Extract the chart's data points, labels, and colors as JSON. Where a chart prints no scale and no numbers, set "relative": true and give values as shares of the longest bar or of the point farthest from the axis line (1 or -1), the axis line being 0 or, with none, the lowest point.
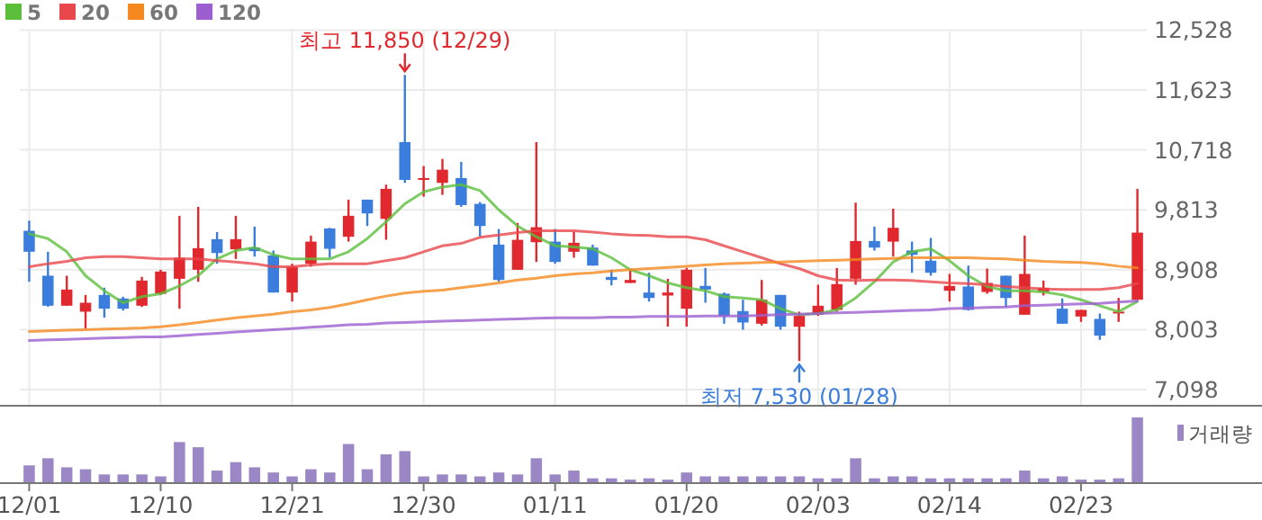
{
  "chart_data": [
    {
      "type": "candlestick",
      "ohlc": [
        [
          9496,
          9650,
          8727,
          9180
        ],
        [
          8818,
          9180,
          8350,
          8365
        ],
        [
          8365,
          8818,
          8365,
          8609
        ],
        [
          8275,
          8528,
          8021,
          8410
        ],
        [
          8528,
          8637,
          8184,
          8320
        ],
        [
          8474,
          8501,
          8293,
          8320
        ],
        [
          8365,
          8800,
          8347,
          8745
        ],
        [
          8546,
          8908,
          8528,
          8881
        ],
        [
          8772,
          9723,
          8320,
          9089
        ],
        [
          8908,
          9858,
          8727,
          9234
        ],
        [
          9370,
          9478,
          8999,
          9161
        ],
        [
          9216,
          9723,
          9071,
          9370
        ],
        [
          9243,
          9560,
          9107,
          9189
        ],
        [
          9125,
          9198,
          8564,
          8564
        ],
        [
          8564,
          8999,
          8428,
          8953
        ],
        [
          8999,
          9424,
          8953,
          9333
        ],
        [
          9532,
          9541,
          9089,
          9225
        ],
        [
          9406,
          9967,
          9333,
          9723
        ],
        [
          9967,
          9967,
          9569,
          9759
        ],
        [
          9677,
          10193,
          9360,
          10130
        ],
        [
          10836,
          11850,
          10220,
          10265
        ],
        [
          10265,
          10474,
          10012,
          10293
        ],
        [
          10220,
          10582,
          10039,
          10419
        ],
        [
          10293,
          10537,
          9858,
          9885
        ],
        [
          9903,
          9931,
          9406,
          9569
        ],
        [
          9288,
          9523,
          8727,
          8754
        ],
        [
          8908,
          9614,
          8908,
          9360
        ],
        [
          9324,
          10836,
          9026,
          9550
        ],
        [
          9333,
          9523,
          8999,
          9026
        ],
        [
          9180,
          9478,
          9089,
          9315
        ],
        [
          9243,
          9288,
          8971,
          8971
        ],
        [
          8800,
          8908,
          8673,
          8754
        ],
        [
          8709,
          8908,
          8709,
          8754
        ],
        [
          8564,
          8863,
          8428,
          8482
        ],
        [
          8519,
          8772,
          8049,
          8564
        ],
        [
          8320,
          8935,
          8049,
          8908
        ],
        [
          8664,
          8935,
          8410,
          8609
        ],
        [
          8546,
          8564,
          8093,
          8211
        ],
        [
          8284,
          8455,
          8003,
          8112
        ],
        [
          8093,
          8754,
          8066,
          8455
        ],
        [
          8528,
          8528,
          8003,
          8048
        ],
        [
          8048,
          8275,
          7530,
          8211
        ],
        [
          8230,
          8682,
          8211,
          8365
        ],
        [
          8302,
          8935,
          8275,
          8691
        ],
        [
          8772,
          9922,
          8682,
          9342
        ],
        [
          9342,
          9560,
          9198,
          9243
        ],
        [
          9333,
          9831,
          9107,
          9541
        ],
        [
          9198,
          9333,
          8863,
          9134
        ],
        [
          9044,
          9388,
          8818,
          8863
        ],
        [
          8591,
          8845,
          8428,
          8664
        ],
        [
          8655,
          8971,
          8293,
          8302
        ],
        [
          8573,
          8926,
          8546,
          8709
        ],
        [
          8818,
          8818,
          8347,
          8482
        ],
        [
          8229,
          9424,
          8229,
          8845
        ],
        [
          8573,
          8745,
          8519,
          8637
        ],
        [
          8320,
          8474,
          8093,
          8093
        ],
        [
          8202,
          8302,
          8121,
          8302
        ],
        [
          8166,
          8247,
          7849,
          7913
        ],
        [
          8256,
          8483,
          8121,
          8275
        ],
        [
          8455,
          10130,
          8455,
          9469
        ]
      ],
      "colors": [
        "#3b7ddd",
        "#3b7ddd",
        "#e0282e",
        "#e0282e",
        "#3b7ddd",
        "#3b7ddd",
        "#e0282e",
        "#e0282e",
        "#e0282e",
        "#e0282e",
        "#3b7ddd",
        "#e0282e",
        "#3b7ddd",
        "#3b7ddd",
        "#e0282e",
        "#e0282e",
        "#3b7ddd",
        "#e0282e",
        "#3b7ddd",
        "#e0282e",
        "#3b7ddd",
        "#e0282e",
        "#e0282e",
        "#3b7ddd",
        "#3b7ddd",
        "#3b7ddd",
        "#e0282e",
        "#e0282e",
        "#3b7ddd",
        "#e0282e",
        "#3b7ddd",
        "#3b7ddd",
        "#e0282e",
        "#3b7ddd",
        "#e0282e",
        "#e0282e",
        "#3b7ddd",
        "#3b7ddd",
        "#3b7ddd",
        "#e0282e",
        "#3b7ddd",
        "#e0282e",
        "#e0282e",
        "#e0282e",
        "#e0282e",
        "#3b7ddd",
        "#e0282e",
        "#3b7ddd",
        "#3b7ddd",
        "#e0282e",
        "#3b7ddd",
        "#e0282e",
        "#3b7ddd",
        "#e0282e",
        "#e0282e",
        "#3b7ddd",
        "#e0282e",
        "#3b7ddd",
        "#e0282e",
        "#e0282e"
      ],
      "series": [
        {
          "type": "line",
          "name": "5",
          "color": "#5cbf3c",
          "values": [
            9451,
            9379,
            9180,
            8818,
            8591,
            8410,
            8501,
            8546,
            8664,
            8818,
            9071,
            9198,
            9243,
            9134,
            9071,
            9071,
            9071,
            9180,
            9379,
            9632,
            9904,
            10085,
            10157,
            10193,
            10103,
            9813,
            9569,
            9406,
            9270,
            9252,
            9225,
            9089,
            8908,
            8818,
            8709,
            8637,
            8591,
            8501,
            8482,
            8455,
            8320,
            8229,
            8247,
            8302,
            8482,
            8727,
            9026,
            9180,
            9225,
            9044,
            8818,
            8655,
            8591,
            8591,
            8573,
            8528,
            8455,
            8365,
            8275,
            8428
          ]
        },
        {
          "type": "line",
          "name": "20",
          "color": "#e8474c",
          "values": [
            8953,
            8999,
            9035,
            9089,
            9107,
            9107,
            9089,
            9071,
            9071,
            9071,
            9044,
            9026,
            8999,
            8953,
            8953,
            8980,
            8999,
            8999,
            8999,
            9044,
            9089,
            9180,
            9270,
            9306,
            9397,
            9433,
            9469,
            9496,
            9496,
            9496,
            9478,
            9451,
            9433,
            9424,
            9406,
            9406,
            9361,
            9270,
            9180,
            9089,
            8999,
            8926,
            8818,
            8754,
            8745,
            8754,
            8754,
            8745,
            8727,
            8709,
            8700,
            8682,
            8655,
            8637,
            8618,
            8609,
            8609,
            8609,
            8637,
            8700
          ]
        },
        {
          "type": "line",
          "name": "60",
          "color": "#f5891f",
          "values": [
            7976,
            7985,
            7994,
            8003,
            8012,
            8021,
            8030,
            8048,
            8076,
            8112,
            8148,
            8184,
            8211,
            8238,
            8275,
            8302,
            8338,
            8392,
            8455,
            8510,
            8555,
            8582,
            8600,
            8637,
            8673,
            8709,
            8754,
            8781,
            8818,
            8845,
            8863,
            8890,
            8908,
            8926,
            8944,
            8962,
            8980,
            8999,
            9008,
            9017,
            9026,
            9035,
            9044,
            9053,
            9062,
            9071,
            9080,
            9089,
            9089,
            9089,
            9089,
            9080,
            9071,
            9053,
            9035,
            9026,
            9017,
            8999,
            8962,
            8935
          ]
        },
        {
          "type": "line",
          "name": "120",
          "color": "#9c5fcf",
          "values": [
            7840,
            7849,
            7858,
            7867,
            7876,
            7885,
            7894,
            7894,
            7912,
            7931,
            7949,
            7967,
            7985,
            8003,
            8021,
            8039,
            8057,
            8076,
            8085,
            8103,
            8112,
            8121,
            8130,
            8139,
            8148,
            8157,
            8166,
            8175,
            8184,
            8184,
            8184,
            8193,
            8193,
            8202,
            8202,
            8202,
            8211,
            8211,
            8211,
            8220,
            8229,
            8238,
            8247,
            8256,
            8265,
            8275,
            8284,
            8293,
            8302,
            8320,
            8329,
            8338,
            8347,
            8365,
            8374,
            8383,
            8392,
            8401,
            8419,
            8437
          ]
        }
      ],
      "ylim": [
        6868,
        12528
      ],
      "yticks": [
        {
          "value": 12528,
          "label": "12,528"
        },
        {
          "value": 11623,
          "label": "11,623"
        },
        {
          "value": 10718,
          "label": "10,718"
        },
        {
          "value": 9813,
          "label": "9,813"
        },
        {
          "value": 8908,
          "label": "8,908"
        },
        {
          "value": 8003,
          "label": "8,003"
        },
        {
          "value": 7098,
          "label": "7,098"
        }
      ],
      "grid": true,
      "legend": "top left",
      "tick_labels": "y",
      "annotations": [
        "최고 11,850 (12/29)",
        "최저 7,530 (01/28)"
      ]
    },
    {
      "type": "bar",
      "categories": [
        "12/01",
        null,
        null,
        null,
        null,
        null,
        null,
        "12/10",
        null,
        null,
        null,
        null,
        null,
        null,
        "12/21",
        null,
        null,
        null,
        null,
        null,
        null,
        "12/30",
        null,
        null,
        null,
        null,
        null,
        null,
        "01/11",
        null,
        null,
        null,
        null,
        null,
        null,
        "01/20",
        null,
        null,
        null,
        null,
        null,
        null,
        "02/03",
        null,
        null,
        null,
        null,
        null,
        null,
        "02/14",
        null,
        null,
        null,
        null,
        null,
        null,
        "02/23",
        null,
        null,
        null
      ],
      "series": [
        {
          "name": "거래량",
          "color": "#9b87c5",
          "values": [
            0.26,
            0.37,
            0.23,
            0.2,
            0.12,
            0.12,
            0.12,
            0.09,
            0.62,
            0.54,
            0.18,
            0.31,
            0.23,
            0.15,
            0.09,
            0.2,
            0.15,
            0.59,
            0.2,
            0.43,
            0.48,
            0.09,
            0.12,
            0.12,
            0.09,
            0.15,
            0.12,
            0.37,
            0.12,
            0.18,
            0.06,
            0.06,
            0.04,
            0.06,
            0.04,
            0.15,
            0.09,
            0.09,
            0.09,
            0.09,
            0.09,
            0.09,
            0.06,
            0.06,
            0.37,
            0.06,
            0.09,
            0.09,
            0.06,
            0.06,
            0.06,
            0.06,
            0.06,
            0.18,
            0.06,
            0.09,
            0.04,
            0.04,
            0.06,
            1
          ]
        }
      ],
      "relative": true,
      "legend": "right",
      "tick_labels": "x"
    }
  ]
}
